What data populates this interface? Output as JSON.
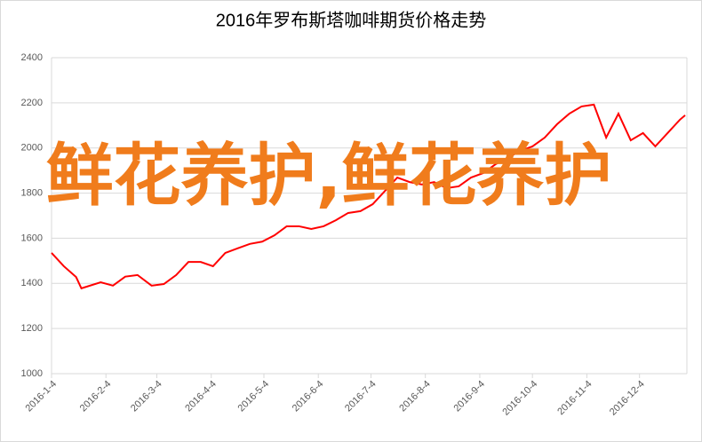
{
  "chart_data": {
    "type": "line",
    "title": "2016年罗布斯塔咖啡期货价格走势",
    "x": [
      "2016-1-4",
      "2016-1-11",
      "2016-1-18",
      "2016-1-21",
      "2016-2-1",
      "2016-2-8",
      "2016-2-15",
      "2016-2-22",
      "2016-3-1",
      "2016-3-8",
      "2016-3-15",
      "2016-3-22",
      "2016-3-29",
      "2016-4-5",
      "2016-4-12",
      "2016-4-19",
      "2016-4-26",
      "2016-5-3",
      "2016-5-10",
      "2016-5-17",
      "2016-5-24",
      "2016-5-31",
      "2016-6-7",
      "2016-6-14",
      "2016-6-21",
      "2016-6-28",
      "2016-7-5",
      "2016-7-12",
      "2016-7-19",
      "2016-7-26",
      "2016-8-2",
      "2016-8-9",
      "2016-8-16",
      "2016-8-23",
      "2016-8-30",
      "2016-9-6",
      "2016-9-13",
      "2016-9-20",
      "2016-9-27",
      "2016-10-4",
      "2016-10-11",
      "2016-10-18",
      "2016-10-25",
      "2016-11-1",
      "2016-11-8",
      "2016-11-15",
      "2016-11-22",
      "2016-11-29",
      "2016-12-6",
      "2016-12-13",
      "2016-12-20",
      "2016-12-27",
      "2016-12-30"
    ],
    "series": [
      {
        "color": "#ff0000",
        "values": [
          1535,
          1476,
          1428,
          1378,
          1405,
          1390,
          1430,
          1437,
          1390,
          1397,
          1437,
          1495,
          1495,
          1476,
          1535,
          1555,
          1575,
          1585,
          1613,
          1653,
          1653,
          1641,
          1653,
          1680,
          1712,
          1720,
          1751,
          1810,
          1869,
          1849,
          1838,
          1849,
          1822,
          1830,
          1869,
          1889,
          1928,
          1956,
          1987,
          2007,
          2046,
          2105,
          2152,
          2184,
          2192,
          2046,
          2152,
          2034,
          2066,
          2007,
          2066,
          2125,
          2145
        ]
      }
    ],
    "xlim": [
      "2016-1-4",
      "2016-12-31"
    ],
    "xticks": [
      "2016-1-4",
      "2016-2-4",
      "2016-3-4",
      "2016-4-4",
      "2016-5-4",
      "2016-6-4",
      "2016-7-4",
      "2016-8-4",
      "2016-9-4",
      "2016-10-4",
      "2016-11-4",
      "2016-12-4"
    ],
    "ylim": [
      1000,
      2400
    ],
    "yticks": [
      1000,
      1200,
      1400,
      1600,
      1800,
      2000,
      2200,
      2400
    ],
    "grid": true
  },
  "watermark": "鲜花养护,鲜花养护"
}
